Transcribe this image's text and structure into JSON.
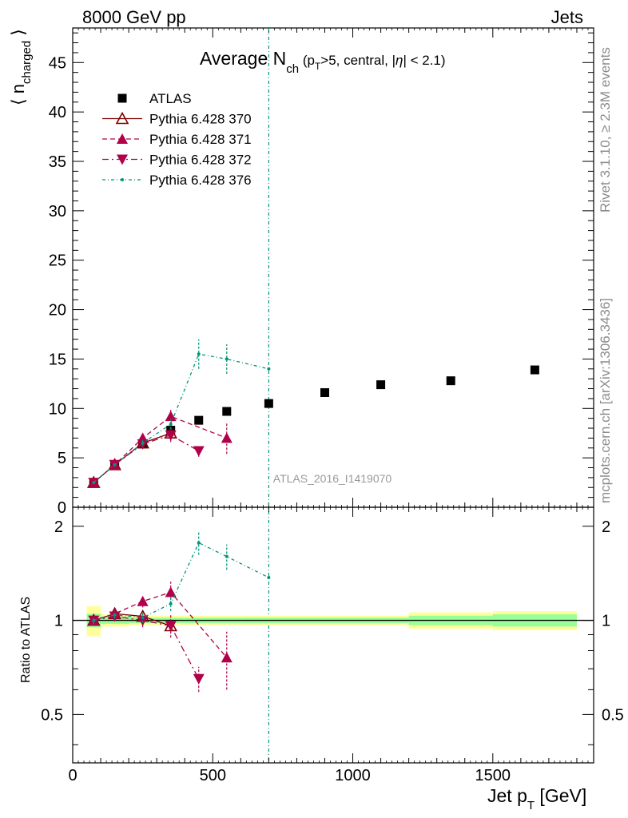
{
  "header": {
    "energy_label": "8000 GeV pp",
    "process_label": "Jets"
  },
  "side_labels": {
    "rivet": "Rivet 3.1.10, ≥ 2.3M events",
    "source": "mcplots.cern.ch [arXiv:1306.3436]"
  },
  "chart_data": [
    {
      "type": "scatter",
      "title": "Average N_ch (p_T>5, central, |η| < 2.1)",
      "ylabel": "⟨ n_charged ⟩",
      "xlabel": "",
      "xlim": [
        0,
        1860
      ],
      "ylim": [
        0,
        48.5
      ],
      "yticks": [
        0,
        5,
        10,
        15,
        20,
        25,
        30,
        35,
        40,
        45
      ],
      "watermark": "ATLAS_2016_I1419070",
      "legend_position": "top-left",
      "series": [
        {
          "name": "ATLAS",
          "color": "#000000",
          "marker": "square",
          "line": "none",
          "points": [
            [
              75,
              2.5
            ],
            [
              150,
              4.2
            ],
            [
              250,
              6.4
            ],
            [
              350,
              7.8
            ],
            [
              450,
              8.8
            ],
            [
              550,
              9.7
            ],
            [
              700,
              10.5
            ],
            [
              900,
              11.6
            ],
            [
              1100,
              12.4
            ],
            [
              1350,
              12.8
            ],
            [
              1650,
              13.9
            ]
          ]
        },
        {
          "name": "Pythia 6.428 370",
          "color": "#7f0000",
          "marker": "triangle-up-open",
          "line": "solid",
          "points": [
            [
              75,
              2.5
            ],
            [
              150,
              4.3
            ],
            [
              250,
              6.5
            ],
            [
              350,
              7.5
            ]
          ]
        },
        {
          "name": "Pythia 6.428 371",
          "color": "#b0004a",
          "marker": "triangle-up",
          "line": "dashed",
          "points": [
            [
              75,
              2.5
            ],
            [
              150,
              4.3
            ],
            [
              250,
              7.0
            ],
            [
              350,
              9.2
            ],
            [
              550,
              7.0
            ]
          ],
          "errors": [
            0.1,
            0.25,
            0.4,
            0.8,
            1.6
          ]
        },
        {
          "name": "Pythia 6.428 372",
          "color": "#b0004a",
          "marker": "triangle-down",
          "line": "dashdot",
          "points": [
            [
              75,
              2.5
            ],
            [
              150,
              4.3
            ],
            [
              250,
              6.4
            ],
            [
              350,
              7.3
            ],
            [
              450,
              5.7
            ]
          ],
          "errors": [
            0.1,
            0.25,
            0.4,
            0.7,
            0.6
          ]
        },
        {
          "name": "Pythia 6.428 376",
          "color": "#00957a",
          "marker": "dot",
          "line": "dashdot-dense",
          "points": [
            [
              75,
              2.5
            ],
            [
              150,
              4.3
            ],
            [
              250,
              6.5
            ],
            [
              350,
              8.4
            ],
            [
              450,
              15.5
            ],
            [
              550,
              15.0
            ],
            [
              700,
              14.0
            ]
          ],
          "errors": [
            0.1,
            0.2,
            0.3,
            0.5,
            1.5,
            1.5,
            0
          ]
        }
      ]
    },
    {
      "type": "scatter",
      "title": "",
      "ylabel": "Ratio to ATLAS",
      "xlabel": "Jet p_T [GeV]",
      "xlim": [
        0,
        1860
      ],
      "xticks": [
        0,
        500,
        1000,
        1500
      ],
      "ylim": [
        0.35,
        2.3
      ],
      "yticks": [
        0.5,
        1,
        2
      ],
      "bands": [
        {
          "x": [
            [
              50,
              100
            ],
            [
              100,
              200
            ],
            [
              200,
              300
            ],
            [
              300,
              400
            ],
            [
              400,
              600
            ],
            [
              600,
              800
            ],
            [
              800,
              1200
            ],
            [
              1200,
              1500
            ],
            [
              1500,
              1800
            ]
          ],
          "yellow": [
            0.11,
            0.045,
            0.035,
            0.035,
            0.035,
            0.035,
            0.035,
            0.06,
            0.07
          ],
          "green": [
            0.05,
            0.025,
            0.02,
            0.02,
            0.02,
            0.02,
            0.02,
            0.035,
            0.045
          ]
        }
      ],
      "series": [
        {
          "name": "Pythia 6.428 370",
          "color": "#7f0000",
          "points": [
            [
              75,
              1.0
            ],
            [
              150,
              1.05
            ],
            [
              250,
              1.03
            ],
            [
              350,
              0.96
            ]
          ]
        },
        {
          "name": "Pythia 6.428 371",
          "color": "#b0004a",
          "points": [
            [
              75,
              1.0
            ],
            [
              150,
              1.05
            ],
            [
              250,
              1.15
            ],
            [
              350,
              1.23
            ],
            [
              550,
              0.76
            ]
          ],
          "errors": [
            0.04,
            0.04,
            0.05,
            0.1,
            0.16
          ]
        },
        {
          "name": "Pythia 6.428 372",
          "color": "#b0004a",
          "points": [
            [
              75,
              1.0
            ],
            [
              150,
              1.03
            ],
            [
              250,
              1.0
            ],
            [
              350,
              0.96
            ],
            [
              450,
              0.65
            ]
          ],
          "errors": [
            0.04,
            0.03,
            0.05,
            0.08,
            0.06
          ]
        },
        {
          "name": "Pythia 6.428 376",
          "color": "#00957a",
          "points": [
            [
              75,
              1.0
            ],
            [
              150,
              1.04
            ],
            [
              250,
              1.02
            ],
            [
              350,
              1.13
            ],
            [
              450,
              1.77
            ],
            [
              550,
              1.6
            ],
            [
              700,
              1.37
            ]
          ],
          "errors": [
            0.03,
            0.03,
            0.04,
            0.06,
            0.15,
            0.15,
            0
          ]
        }
      ]
    }
  ]
}
